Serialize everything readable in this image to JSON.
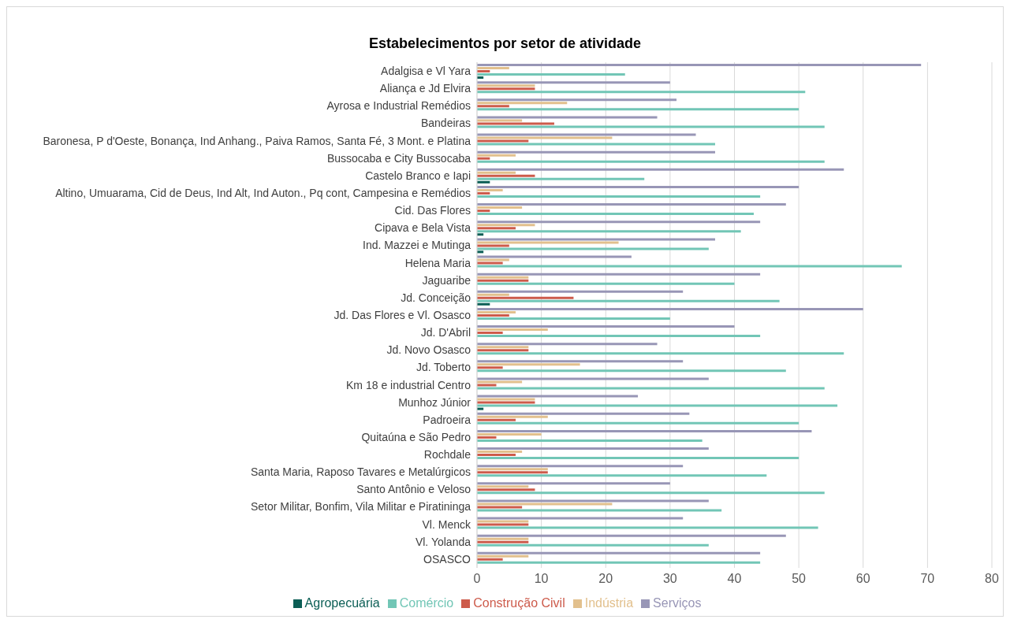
{
  "chart_data": {
    "type": "bar",
    "orientation": "horizontal",
    "title": "Estabelecimentos por setor de atividade",
    "categories": [
      "Adalgisa e Vl Yara",
      "Aliança e Jd Elvira",
      "Ayrosa e Industrial Remédios",
      "Bandeiras",
      "Baronesa, P d'Oeste, Bonança, Ind Anhang., Paiva Ramos, Santa Fé, 3 Mont. e Platina",
      "Bussocaba e City Bussocaba",
      "Castelo Branco e Iapi",
      "Altino, Umuarama, Cid de Deus, Ind Alt, Ind Auton., Pq cont, Campesina e Remédios",
      "Cid. Das Flores",
      "Cipava e Bela Vista",
      "Ind. Mazzei e Mutinga",
      "Helena Maria",
      "Jaguaribe",
      "Jd. Conceição",
      "Jd. Das Flores e Vl. Osasco",
      "Jd. D'Abril",
      "Jd. Novo Osasco",
      "Jd. Toberto",
      "Km 18 e industrial Centro",
      "Munhoz Júnior",
      "Padroeira",
      "Quitaúna e São Pedro",
      "Rochdale",
      "Santa Maria, Raposo Tavares e Metalúrgicos",
      "Santo Antônio e Veloso",
      "Setor Militar, Bonfim, Vila Militar e Piratininga",
      "Vl. Menck",
      "Vl. Yolanda",
      "OSASCO"
    ],
    "series": [
      {
        "name": "Serviços",
        "color": "#9896b6",
        "values": [
          69,
          30,
          31,
          28,
          34,
          37,
          57,
          50,
          48,
          44,
          37,
          24,
          44,
          32,
          60,
          40,
          28,
          32,
          36,
          25,
          33,
          52,
          36,
          32,
          30,
          36,
          32,
          48,
          44
        ]
      },
      {
        "name": "Indústria",
        "color": "#e2c08d",
        "values": [
          5,
          9,
          14,
          7,
          21,
          6,
          6,
          4,
          7,
          9,
          22,
          5,
          8,
          5,
          6,
          11,
          8,
          16,
          7,
          9,
          11,
          10,
          7,
          11,
          8,
          21,
          8,
          8,
          8
        ]
      },
      {
        "name": "Construção Civil",
        "color": "#cd5b4b",
        "values": [
          2,
          9,
          5,
          12,
          8,
          2,
          9,
          2,
          2,
          6,
          5,
          4,
          8,
          15,
          5,
          4,
          8,
          4,
          3,
          9,
          6,
          3,
          6,
          11,
          9,
          7,
          8,
          8,
          4
        ]
      },
      {
        "name": "Comércio",
        "color": "#72c6b6",
        "values": [
          23,
          51,
          50,
          54,
          37,
          54,
          26,
          44,
          43,
          41,
          36,
          66,
          40,
          47,
          30,
          44,
          57,
          48,
          54,
          56,
          50,
          35,
          50,
          45,
          54,
          38,
          53,
          36,
          44
        ]
      },
      {
        "name": "Agropecuária",
        "color": "#0b5e55",
        "values": [
          1,
          0,
          0,
          0,
          0,
          0,
          2,
          0,
          0,
          1,
          1,
          0,
          0,
          2,
          0,
          0,
          0,
          0,
          0,
          1,
          0,
          0,
          0,
          0,
          0,
          0,
          0,
          0,
          0
        ]
      }
    ],
    "xlim": [
      0,
      80
    ],
    "xticks": [
      0,
      10,
      20,
      30,
      40,
      50,
      60,
      70,
      80
    ],
    "grid": "x",
    "legend": "bottom"
  }
}
